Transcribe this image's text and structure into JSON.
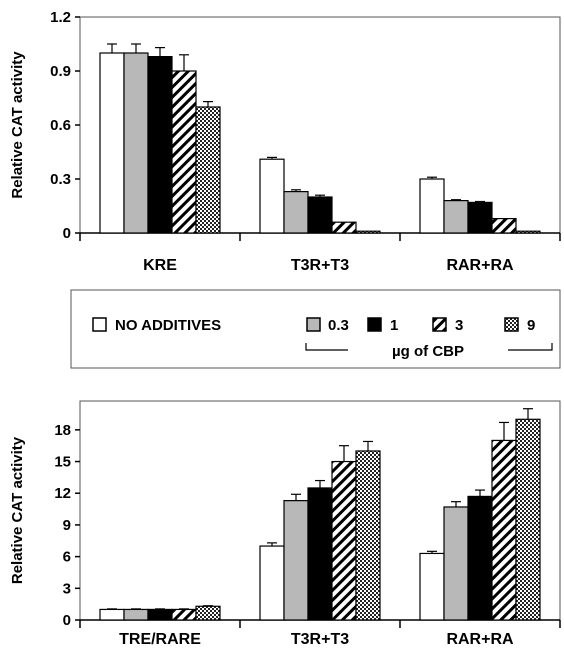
{
  "chart_data": [
    {
      "type": "bar",
      "ylabel": "Relative CAT activity",
      "ylim": [
        0,
        1.2
      ],
      "yticks": [
        "0",
        "0.3",
        "0.6",
        "0.9",
        "1.2"
      ],
      "categories": [
        "KRE",
        "T3R+T3",
        "RAR+RA"
      ],
      "series": [
        {
          "name": "NO ADDITIVES",
          "values": [
            1.0,
            0.41,
            0.3
          ],
          "errors": [
            0.05,
            0.01,
            0.01
          ]
        },
        {
          "name": "0.3",
          "values": [
            1.0,
            0.23,
            0.18
          ],
          "errors": [
            0.05,
            0.01,
            0.005
          ]
        },
        {
          "name": "1",
          "values": [
            0.98,
            0.2,
            0.17
          ],
          "errors": [
            0.05,
            0.01,
            0.005
          ]
        },
        {
          "name": "3",
          "values": [
            0.9,
            0.06,
            0.08
          ],
          "errors": [
            0.09,
            0.0,
            0.0
          ]
        },
        {
          "name": "9",
          "values": [
            0.7,
            0.01,
            0.01
          ],
          "errors": [
            0.03,
            0.0,
            0.0
          ]
        }
      ]
    },
    {
      "type": "bar",
      "ylabel": "Relative CAT activity",
      "ylim": [
        0,
        19.5
      ],
      "yticks": [
        "0",
        "3",
        "6",
        "9",
        "12",
        "15",
        "18"
      ],
      "categories": [
        "TRE/RARE",
        "T3R+T3",
        "RAR+RA"
      ],
      "series": [
        {
          "name": "NO ADDITIVES",
          "values": [
            1.0,
            7.0,
            6.3
          ],
          "errors": [
            0.05,
            0.3,
            0.2
          ]
        },
        {
          "name": "0.3",
          "values": [
            1.0,
            11.3,
            10.7
          ],
          "errors": [
            0.05,
            0.6,
            0.5
          ]
        },
        {
          "name": "1",
          "values": [
            1.0,
            12.5,
            11.7
          ],
          "errors": [
            0.05,
            0.7,
            0.6
          ]
        },
        {
          "name": "3",
          "values": [
            1.0,
            15.0,
            17.0
          ],
          "errors": [
            0.05,
            1.5,
            1.7
          ]
        },
        {
          "name": "9",
          "values": [
            1.3,
            16.0,
            19.0
          ],
          "errors": [
            0.05,
            0.9,
            1.0
          ]
        }
      ]
    }
  ],
  "legend": {
    "no_additives": "NO ADDITIVES",
    "doses": [
      "0.3",
      "1",
      "3",
      "9"
    ],
    "caption": "µg of CBP"
  },
  "styles": {
    "fills": [
      "white",
      "#b8b8b8",
      "#000000",
      "hatch",
      "crosshatch"
    ]
  }
}
